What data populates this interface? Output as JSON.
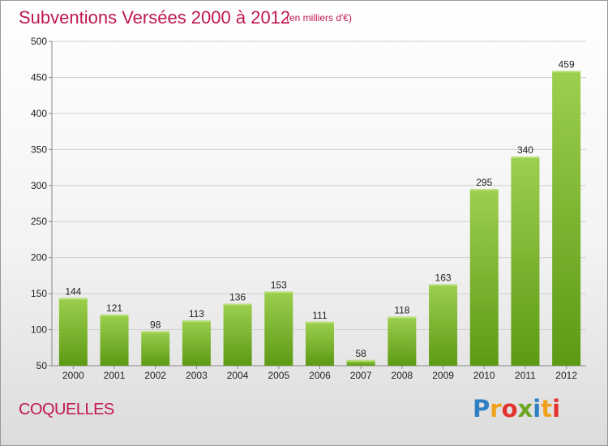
{
  "title": "Subventions Versées 2000 à 2012",
  "subtitle": "(en milliers d'€)",
  "commune": "COQUELLES",
  "logo": {
    "text": "Proxiti",
    "letters": [
      {
        "ch": "P",
        "color": "#2f7fc1"
      },
      {
        "ch": "r",
        "color": "#f0a21c"
      },
      {
        "ch": "o",
        "color": "#e3322c"
      },
      {
        "ch": "x",
        "color": "#6aa622"
      },
      {
        "ch": "i",
        "color": "#2f7fc1"
      },
      {
        "ch": "t",
        "color": "#f0a21c"
      },
      {
        "ch": "i",
        "color": "#e3322c"
      }
    ]
  },
  "colors": {
    "bar_top": "#9ccf4e",
    "bar_bottom": "#5d9a14",
    "text": "#c0174e"
  },
  "chart_data": {
    "type": "bar",
    "categories": [
      "2000",
      "2001",
      "2002",
      "2003",
      "2004",
      "2005",
      "2006",
      "2007",
      "2008",
      "2009",
      "2010",
      "2011",
      "2012"
    ],
    "values": [
      144,
      121,
      98,
      113,
      136,
      153,
      111,
      58,
      118,
      163,
      295,
      340,
      459
    ],
    "ylim": [
      50,
      500
    ],
    "yticks": [
      50,
      100,
      150,
      200,
      250,
      300,
      350,
      400,
      450,
      500
    ],
    "grid": true,
    "xlabel": "",
    "ylabel": ""
  }
}
